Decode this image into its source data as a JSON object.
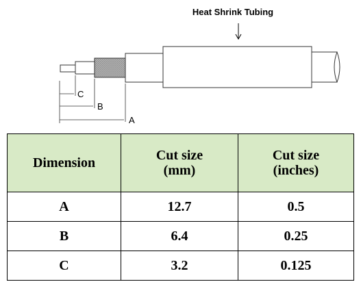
{
  "diagram": {
    "label": "Heat Shrink Tubing",
    "dimensions": [
      "C",
      "B",
      "A"
    ]
  },
  "table": {
    "header": [
      "Dimension",
      "Cut size (mm)",
      "Cut size (inches)"
    ],
    "rows": [
      [
        "A",
        12.7,
        0.5
      ],
      [
        "B",
        6.4,
        0.25
      ],
      [
        "C",
        3.2,
        0.125
      ]
    ]
  }
}
